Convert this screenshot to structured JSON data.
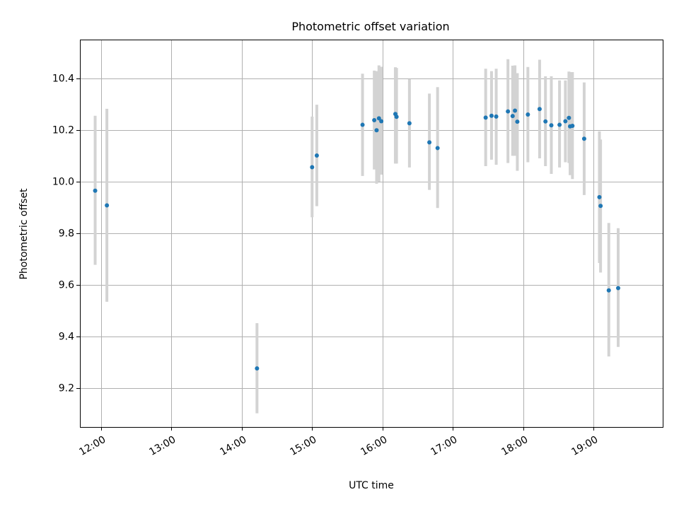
{
  "chart_data": {
    "type": "scatter",
    "title": "Photometric offset variation",
    "xlabel": "UTC time",
    "ylabel": "Photometric offset",
    "x_tick_labels": [
      "12:00",
      "13:00",
      "14:00",
      "15:00",
      "16:00",
      "17:00",
      "18:00",
      "19:00"
    ],
    "x_tick_hours": [
      12,
      13,
      14,
      15,
      16,
      17,
      18,
      19
    ],
    "y_ticks": [
      9.2,
      9.4,
      9.6,
      9.8,
      10.0,
      10.2,
      10.4
    ],
    "y_tick_labels": [
      "9.2",
      "9.4",
      "9.6",
      "9.8",
      "10.0",
      "10.2",
      "10.4"
    ],
    "xlim": [
      "11:42",
      "19:59"
    ],
    "ylim": [
      9.05,
      10.55
    ],
    "grid": true,
    "colors": {
      "point": "#1f77b4",
      "errorbar": "#d3d3d3"
    },
    "series": [
      {
        "points": [
          {
            "x": "11:55",
            "y": 9.965,
            "lo": 9.678,
            "hi": 10.255
          },
          {
            "x": "12:05",
            "y": 9.908,
            "lo": 9.535,
            "hi": 10.282
          },
          {
            "x": "14:13",
            "y": 9.277,
            "lo": 9.103,
            "hi": 9.452
          },
          {
            "x": "15:00",
            "y": 10.056,
            "lo": 9.862,
            "hi": 10.252
          },
          {
            "x": "15:04",
            "y": 10.101,
            "lo": 9.905,
            "hi": 10.298
          },
          {
            "x": "15:43",
            "y": 10.22,
            "lo": 10.022,
            "hi": 10.418
          },
          {
            "x": "15:53",
            "y": 10.238,
            "lo": 10.047,
            "hi": 10.43
          },
          {
            "x": "15:55",
            "y": 10.199,
            "lo": 9.992,
            "hi": 10.428
          },
          {
            "x": "15:57",
            "y": 10.245,
            "lo": 10.0,
            "hi": 10.45
          },
          {
            "x": "15:59",
            "y": 10.234,
            "lo": 10.027,
            "hi": 10.445
          },
          {
            "x": "16:11",
            "y": 10.262,
            "lo": 10.07,
            "hi": 10.443
          },
          {
            "x": "16:12",
            "y": 10.251,
            "lo": 10.07,
            "hi": 10.44
          },
          {
            "x": "16:23",
            "y": 10.226,
            "lo": 10.055,
            "hi": 10.397
          },
          {
            "x": "16:40",
            "y": 10.152,
            "lo": 9.968,
            "hi": 10.341
          },
          {
            "x": "16:47",
            "y": 10.13,
            "lo": 9.898,
            "hi": 10.366
          },
          {
            "x": "17:28",
            "y": 10.248,
            "lo": 10.06,
            "hi": 10.437
          },
          {
            "x": "17:33",
            "y": 10.255,
            "lo": 10.085,
            "hi": 10.428
          },
          {
            "x": "17:37",
            "y": 10.252,
            "lo": 10.065,
            "hi": 10.437
          },
          {
            "x": "17:47",
            "y": 10.272,
            "lo": 10.072,
            "hi": 10.474
          },
          {
            "x": "17:51",
            "y": 10.254,
            "lo": 10.1,
            "hi": 10.449
          },
          {
            "x": "17:53",
            "y": 10.275,
            "lo": 10.1,
            "hi": 10.45
          },
          {
            "x": "17:55",
            "y": 10.232,
            "lo": 10.042,
            "hi": 10.42
          },
          {
            "x": "18:04",
            "y": 10.26,
            "lo": 10.075,
            "hi": 10.444
          },
          {
            "x": "18:14",
            "y": 10.281,
            "lo": 10.09,
            "hi": 10.472
          },
          {
            "x": "18:19",
            "y": 10.233,
            "lo": 10.06,
            "hi": 10.408
          },
          {
            "x": "18:24",
            "y": 10.218,
            "lo": 10.03,
            "hi": 10.408
          },
          {
            "x": "18:31",
            "y": 10.22,
            "lo": 10.055,
            "hi": 10.392
          },
          {
            "x": "18:36",
            "y": 10.234,
            "lo": 10.075,
            "hi": 10.392
          },
          {
            "x": "18:39",
            "y": 10.247,
            "lo": 10.072,
            "hi": 10.426
          },
          {
            "x": "18:40",
            "y": 10.214,
            "lo": 10.025,
            "hi": 10.424
          },
          {
            "x": "18:42",
            "y": 10.216,
            "lo": 10.01,
            "hi": 10.424
          },
          {
            "x": "18:52",
            "y": 10.166,
            "lo": 9.948,
            "hi": 10.384
          },
          {
            "x": "19:05",
            "y": 9.94,
            "lo": 9.685,
            "hi": 10.195
          },
          {
            "x": "19:06",
            "y": 9.906,
            "lo": 9.648,
            "hi": 10.163
          },
          {
            "x": "19:13",
            "y": 9.579,
            "lo": 9.323,
            "hi": 9.84
          },
          {
            "x": "19:21",
            "y": 9.588,
            "lo": 9.36,
            "hi": 9.82
          }
        ]
      }
    ]
  }
}
